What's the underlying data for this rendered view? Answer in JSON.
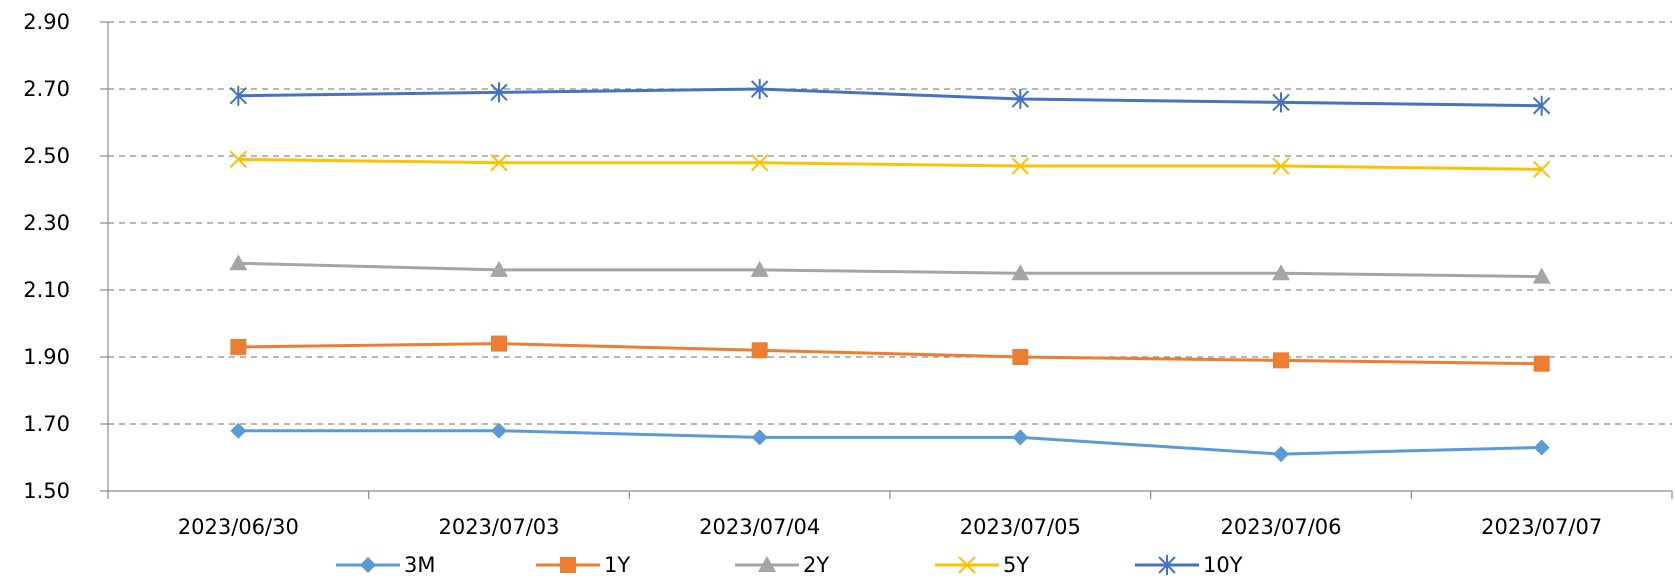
{
  "chart_data": {
    "type": "line",
    "title": "",
    "xlabel": "",
    "ylabel": "",
    "categories": [
      "2023/06/30",
      "2023/07/03",
      "2023/07/04",
      "2023/07/05",
      "2023/07/06",
      "2023/07/07"
    ],
    "ylim": [
      1.5,
      2.9
    ],
    "yticks": [
      "1.50",
      "1.70",
      "1.90",
      "2.10",
      "2.30",
      "2.50",
      "2.70",
      "2.90"
    ],
    "grid": "horizontal-dashed",
    "legend_position": "bottom",
    "series": [
      {
        "name": "3M",
        "color": "#5b9bd5",
        "marker": "diamond",
        "values": [
          1.68,
          1.68,
          1.66,
          1.66,
          1.61,
          1.63
        ]
      },
      {
        "name": "1Y",
        "color": "#ed7d31",
        "marker": "square",
        "values": [
          1.93,
          1.94,
          1.92,
          1.9,
          1.89,
          1.88
        ]
      },
      {
        "name": "2Y",
        "color": "#a5a5a5",
        "marker": "triangle",
        "values": [
          2.18,
          2.16,
          2.16,
          2.15,
          2.15,
          2.14
        ]
      },
      {
        "name": "5Y",
        "color": "#ffc000",
        "marker": "x",
        "values": [
          2.49,
          2.48,
          2.48,
          2.47,
          2.47,
          2.46
        ]
      },
      {
        "name": "10Y",
        "color": "#4472c4",
        "marker": "star",
        "values": [
          2.68,
          2.69,
          2.7,
          2.67,
          2.66,
          2.65
        ]
      }
    ]
  }
}
